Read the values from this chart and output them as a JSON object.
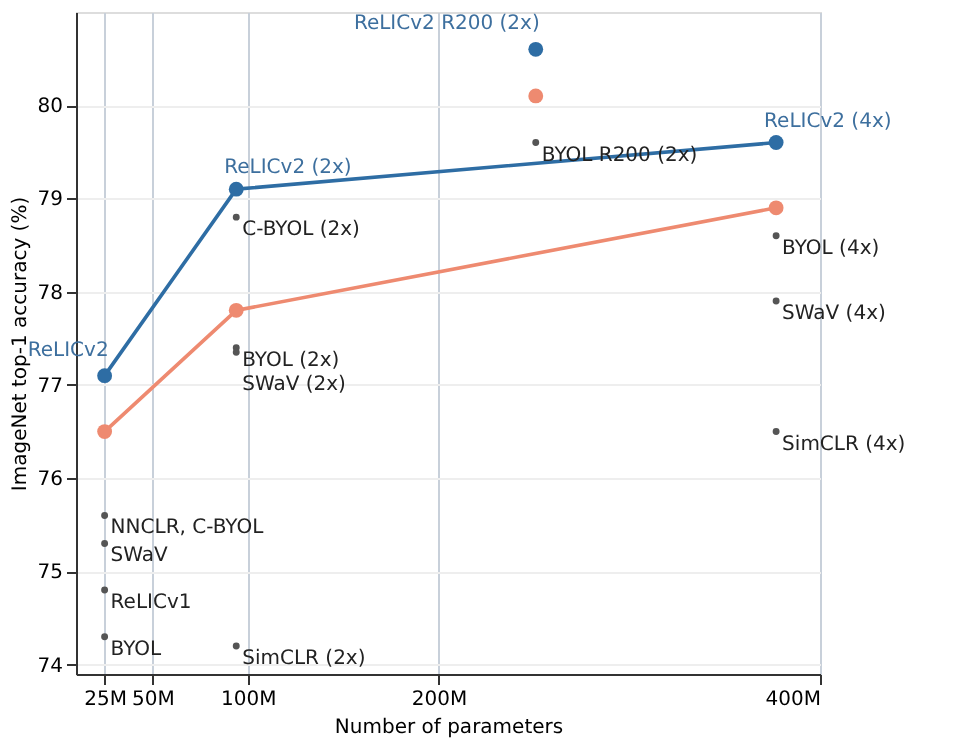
{
  "chart_data": {
    "type": "line",
    "xlabel": "Number of parameters",
    "ylabel": "ImageNet top-1 accuracy (%)",
    "xlim": [
      10,
      400
    ],
    "xticks": [
      {
        "value": 25,
        "label": "25M"
      },
      {
        "value": 50,
        "label": "50M"
      },
      {
        "value": 100,
        "label": "100M"
      },
      {
        "value": 200,
        "label": "200M"
      },
      {
        "value": 400,
        "label": "400M"
      }
    ],
    "ylim": [
      73.9,
      81.0
    ],
    "yticks": [
      74,
      75,
      76,
      77,
      78,
      79,
      80
    ],
    "grid": true,
    "marker": "circle",
    "series": [
      {
        "color": "#2e6da4",
        "x": [
          25,
          94,
          377
        ],
        "values": [
          77.1,
          79.1,
          79.6
        ]
      },
      {
        "type": "scatter",
        "color": "#2e6da4",
        "x": [
          251
        ],
        "values": [
          80.6
        ]
      },
      {
        "color": "#ee8a70",
        "x": [
          25,
          94,
          377
        ],
        "values": [
          76.5,
          77.8,
          78.9
        ]
      },
      {
        "type": "scatter",
        "color": "#ee8a70",
        "x": [
          251
        ],
        "values": [
          80.1
        ]
      },
      {
        "type": "scatter",
        "color": "#555555",
        "x": [
          94,
          94,
          94,
          251,
          377,
          377,
          377,
          25,
          25,
          25,
          25,
          94
        ],
        "values": [
          78.8,
          77.4,
          77.35,
          79.6,
          78.6,
          77.9,
          76.5,
          75.6,
          75.3,
          74.8,
          74.3,
          74.2
        ]
      }
    ],
    "annotations": [
      {
        "text": "ReLICv2",
        "x": 25,
        "y": 77.1
      },
      {
        "text": "ReLICv2 (2x)",
        "x": 94,
        "y": 79.1
      },
      {
        "text": "ReLICv2 R200 (2x)",
        "x": 251,
        "y": 80.6
      },
      {
        "text": "ReLICv2 (4x)",
        "x": 377,
        "y": 79.6
      },
      {
        "text": "C-BYOL (2x)",
        "x": 94,
        "y": 78.8
      },
      {
        "text": "BYOL (2x)",
        "x": 94,
        "y": 77.4
      },
      {
        "text": "SWaV (2x)",
        "x": 94,
        "y": 77.35
      },
      {
        "text": "BYOL R200 (2x)",
        "x": 251,
        "y": 79.6
      },
      {
        "text": "BYOL (4x)",
        "x": 377,
        "y": 78.6
      },
      {
        "text": "SWaV (4x)",
        "x": 377,
        "y": 77.9
      },
      {
        "text": "SimCLR (4x)",
        "x": 377,
        "y": 76.5
      },
      {
        "text": "NNCLR,  C-BYOL",
        "x": 25,
        "y": 75.6
      },
      {
        "text": "SWaV",
        "x": 25,
        "y": 75.3
      },
      {
        "text": "ReLICv1",
        "x": 25,
        "y": 74.8
      },
      {
        "text": "BYOL",
        "x": 25,
        "y": 74.3
      },
      {
        "text": "SimCLR (2x)",
        "x": 94,
        "y": 74.2
      }
    ]
  }
}
